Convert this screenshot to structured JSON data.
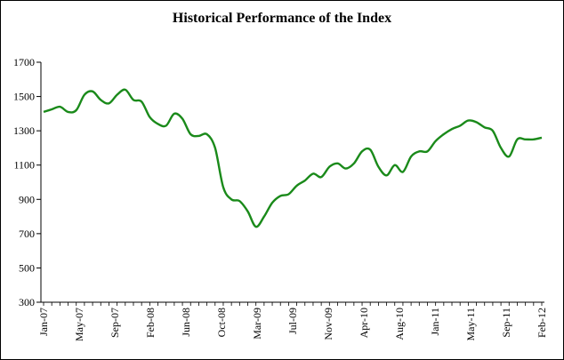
{
  "chart_data": {
    "type": "line",
    "title": "Historical Performance of the Index",
    "xlabel": "",
    "ylabel": "",
    "ylim": [
      300,
      1700
    ],
    "yticks": [
      300,
      500,
      700,
      900,
      1100,
      1300,
      1500,
      1700
    ],
    "xtick_labels": [
      "Jan-07",
      "May-07",
      "Sep-07",
      "Feb-08",
      "Jun-08",
      "Oct-08",
      "Mar-09",
      "Jul-09",
      "Nov-09",
      "Apr-10",
      "Aug-10",
      "Jan-11",
      "May-11",
      "Sep-11",
      "Feb-12"
    ],
    "grid": false,
    "legend": "none",
    "series_color": "#1a8a1a",
    "series": [
      {
        "x": [
          "2007-01",
          "2007-02",
          "2007-03",
          "2007-04",
          "2007-05",
          "2007-06",
          "2007-07",
          "2007-08",
          "2007-09",
          "2007-10",
          "2007-11",
          "2007-12",
          "2008-01",
          "2008-02",
          "2008-03",
          "2008-04",
          "2008-05",
          "2008-06",
          "2008-07",
          "2008-08",
          "2008-09",
          "2008-10",
          "2008-11",
          "2008-12",
          "2009-01",
          "2009-02",
          "2009-03",
          "2009-04",
          "2009-05",
          "2009-06",
          "2009-07",
          "2009-08",
          "2009-09",
          "2009-10",
          "2009-11",
          "2009-12",
          "2010-01",
          "2010-02",
          "2010-03",
          "2010-04",
          "2010-05",
          "2010-06",
          "2010-07",
          "2010-08",
          "2010-09",
          "2010-10",
          "2010-11",
          "2010-12",
          "2011-01",
          "2011-02",
          "2011-03",
          "2011-04",
          "2011-05",
          "2011-06",
          "2011-07",
          "2011-08",
          "2011-09",
          "2011-10",
          "2011-11",
          "2011-12",
          "2012-01",
          "2012-02"
        ],
        "values": [
          1410,
          1425,
          1440,
          1410,
          1420,
          1510,
          1530,
          1480,
          1460,
          1510,
          1540,
          1480,
          1470,
          1380,
          1340,
          1330,
          1400,
          1370,
          1280,
          1270,
          1280,
          1200,
          970,
          900,
          890,
          830,
          740,
          800,
          880,
          920,
          930,
          980,
          1010,
          1050,
          1030,
          1090,
          1110,
          1080,
          1110,
          1180,
          1190,
          1090,
          1040,
          1100,
          1060,
          1150,
          1180,
          1180,
          1240,
          1280,
          1310,
          1330,
          1360,
          1350,
          1320,
          1300,
          1200,
          1150,
          1250,
          1250,
          1250,
          1260
        ]
      }
    ]
  }
}
